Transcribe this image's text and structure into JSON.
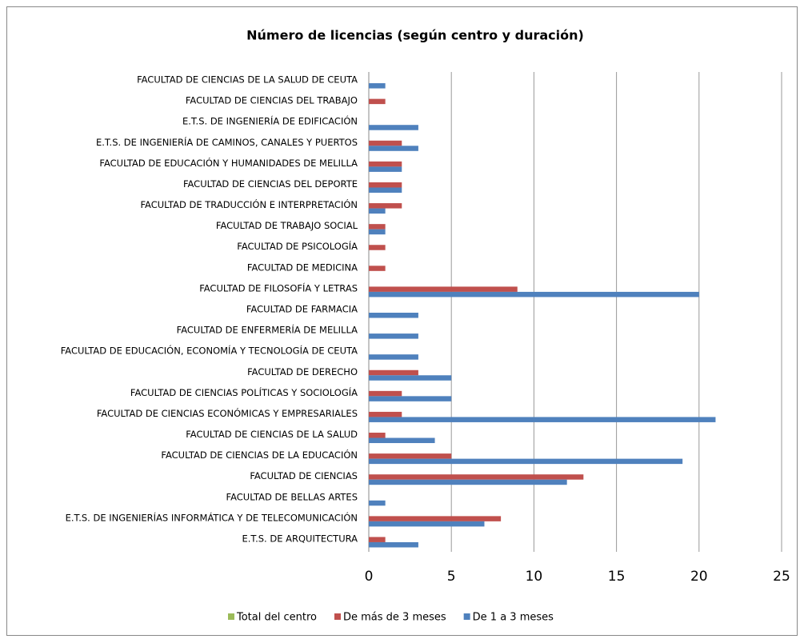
{
  "chart_data": {
    "type": "hbar",
    "title": "Número de licencias (según centro y duración)",
    "categories": [
      "FACULTAD DE CIENCIAS DE LA SALUD DE CEUTA",
      "FACULTAD DE CIENCIAS DEL TRABAJO",
      "E.T.S. DE INGENIERÍA DE EDIFICACIÓN",
      "E.T.S. DE INGENIERÍA DE CAMINOS, CANALES Y PUERTOS",
      "FACULTAD DE EDUCACIÓN Y HUMANIDADES DE MELILLA",
      "FACULTAD DE CIENCIAS DEL DEPORTE",
      "FACULTAD DE TRADUCCIÓN E INTERPRETACIÓN",
      "FACULTAD DE TRABAJO SOCIAL",
      "FACULTAD DE PSICOLOGÍA",
      "FACULTAD DE MEDICINA",
      "FACULTAD DE FILOSOFÍA Y LETRAS",
      "FACULTAD DE FARMACIA",
      "FACULTAD DE ENFERMERÍA DE MELILLA",
      "FACULTAD DE EDUCACIÓN, ECONOMÍA Y TECNOLOGÍA DE CEUTA",
      "FACULTAD DE DERECHO",
      "FACULTAD DE CIENCIAS POLÍTICAS Y SOCIOLOGÍA",
      "FACULTAD DE CIENCIAS ECONÓMICAS Y EMPRESARIALES",
      "FACULTAD DE CIENCIAS DE LA SALUD",
      "FACULTAD DE CIENCIAS DE LA EDUCACIÓN",
      "FACULTAD DE CIENCIAS",
      "FACULTAD DE BELLAS ARTES",
      "E.T.S. DE INGENIERÍAS INFORMÁTICA Y DE TELECOMUNICACIÓN",
      "E.T.S. DE ARQUITECTURA"
    ],
    "series": [
      {
        "name": "Total del centro",
        "color": "#9bbb59",
        "values": [
          null,
          null,
          null,
          null,
          null,
          null,
          null,
          null,
          null,
          null,
          null,
          null,
          null,
          null,
          null,
          null,
          null,
          null,
          null,
          null,
          null,
          null,
          null
        ]
      },
      {
        "name": "De más de 3 meses",
        "color": "#c0504d",
        "values": [
          0,
          1,
          0,
          2,
          2,
          2,
          2,
          1,
          1,
          1,
          9,
          0,
          0,
          0,
          3,
          2,
          2,
          1,
          5,
          13,
          0,
          8,
          1
        ]
      },
      {
        "name": "De 1 a 3 meses",
        "color": "#4f81bd",
        "values": [
          1,
          0,
          3,
          3,
          2,
          2,
          1,
          1,
          0,
          0,
          20,
          3,
          3,
          3,
          5,
          5,
          21,
          4,
          19,
          12,
          1,
          7,
          3
        ]
      }
    ],
    "xlim": [
      0,
      25
    ],
    "xticks": [
      0,
      5,
      10,
      15,
      20,
      25
    ],
    "grid": true
  }
}
